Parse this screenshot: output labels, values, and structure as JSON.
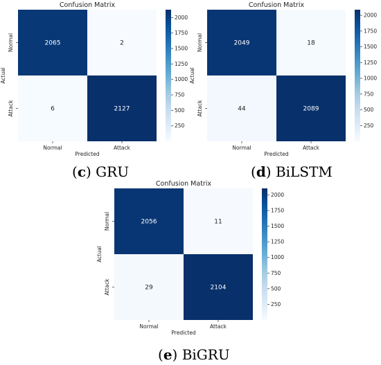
{
  "chart_data": [
    {
      "type": "heatmap",
      "title": "Confusion Matrix",
      "xlabel": "Predicted",
      "ylabel": "Actual",
      "x_categories": [
        "Normal",
        "Attack"
      ],
      "y_categories": [
        "Normal",
        "Attack"
      ],
      "values": [
        [
          2065,
          2
        ],
        [
          6,
          2127
        ]
      ],
      "colormap": "Blues",
      "color_range": [
        0,
        2127
      ],
      "colorbar_ticks": [
        250,
        500,
        750,
        1000,
        1250,
        1500,
        1750,
        2000
      ],
      "caption_letter": "c",
      "caption_text": " GRU"
    },
    {
      "type": "heatmap",
      "title": "Confusion Matrix",
      "xlabel": "Predicted",
      "ylabel": "Actual",
      "x_categories": [
        "Normal",
        "Attack"
      ],
      "y_categories": [
        "Normal",
        "Attack"
      ],
      "values": [
        [
          2049,
          18
        ],
        [
          44,
          2089
        ]
      ],
      "colormap": "Blues",
      "color_range": [
        0,
        2089
      ],
      "colorbar_ticks": [
        250,
        500,
        750,
        1000,
        1250,
        1500,
        1750,
        2000
      ],
      "caption_letter": "d",
      "caption_text": " BiLSTM"
    },
    {
      "type": "heatmap",
      "title": "Confusion Matrix",
      "xlabel": "Predicted",
      "ylabel": "Actual",
      "x_categories": [
        "Normal",
        "Attack"
      ],
      "y_categories": [
        "Normal",
        "Attack"
      ],
      "values": [
        [
          2056,
          11
        ],
        [
          29,
          2104
        ]
      ],
      "colormap": "Blues",
      "color_range": [
        0,
        2104
      ],
      "colorbar_ticks": [
        250,
        500,
        750,
        1000,
        1250,
        1500,
        1750,
        2000
      ],
      "caption_letter": "e",
      "caption_text": " BiGRU"
    }
  ]
}
